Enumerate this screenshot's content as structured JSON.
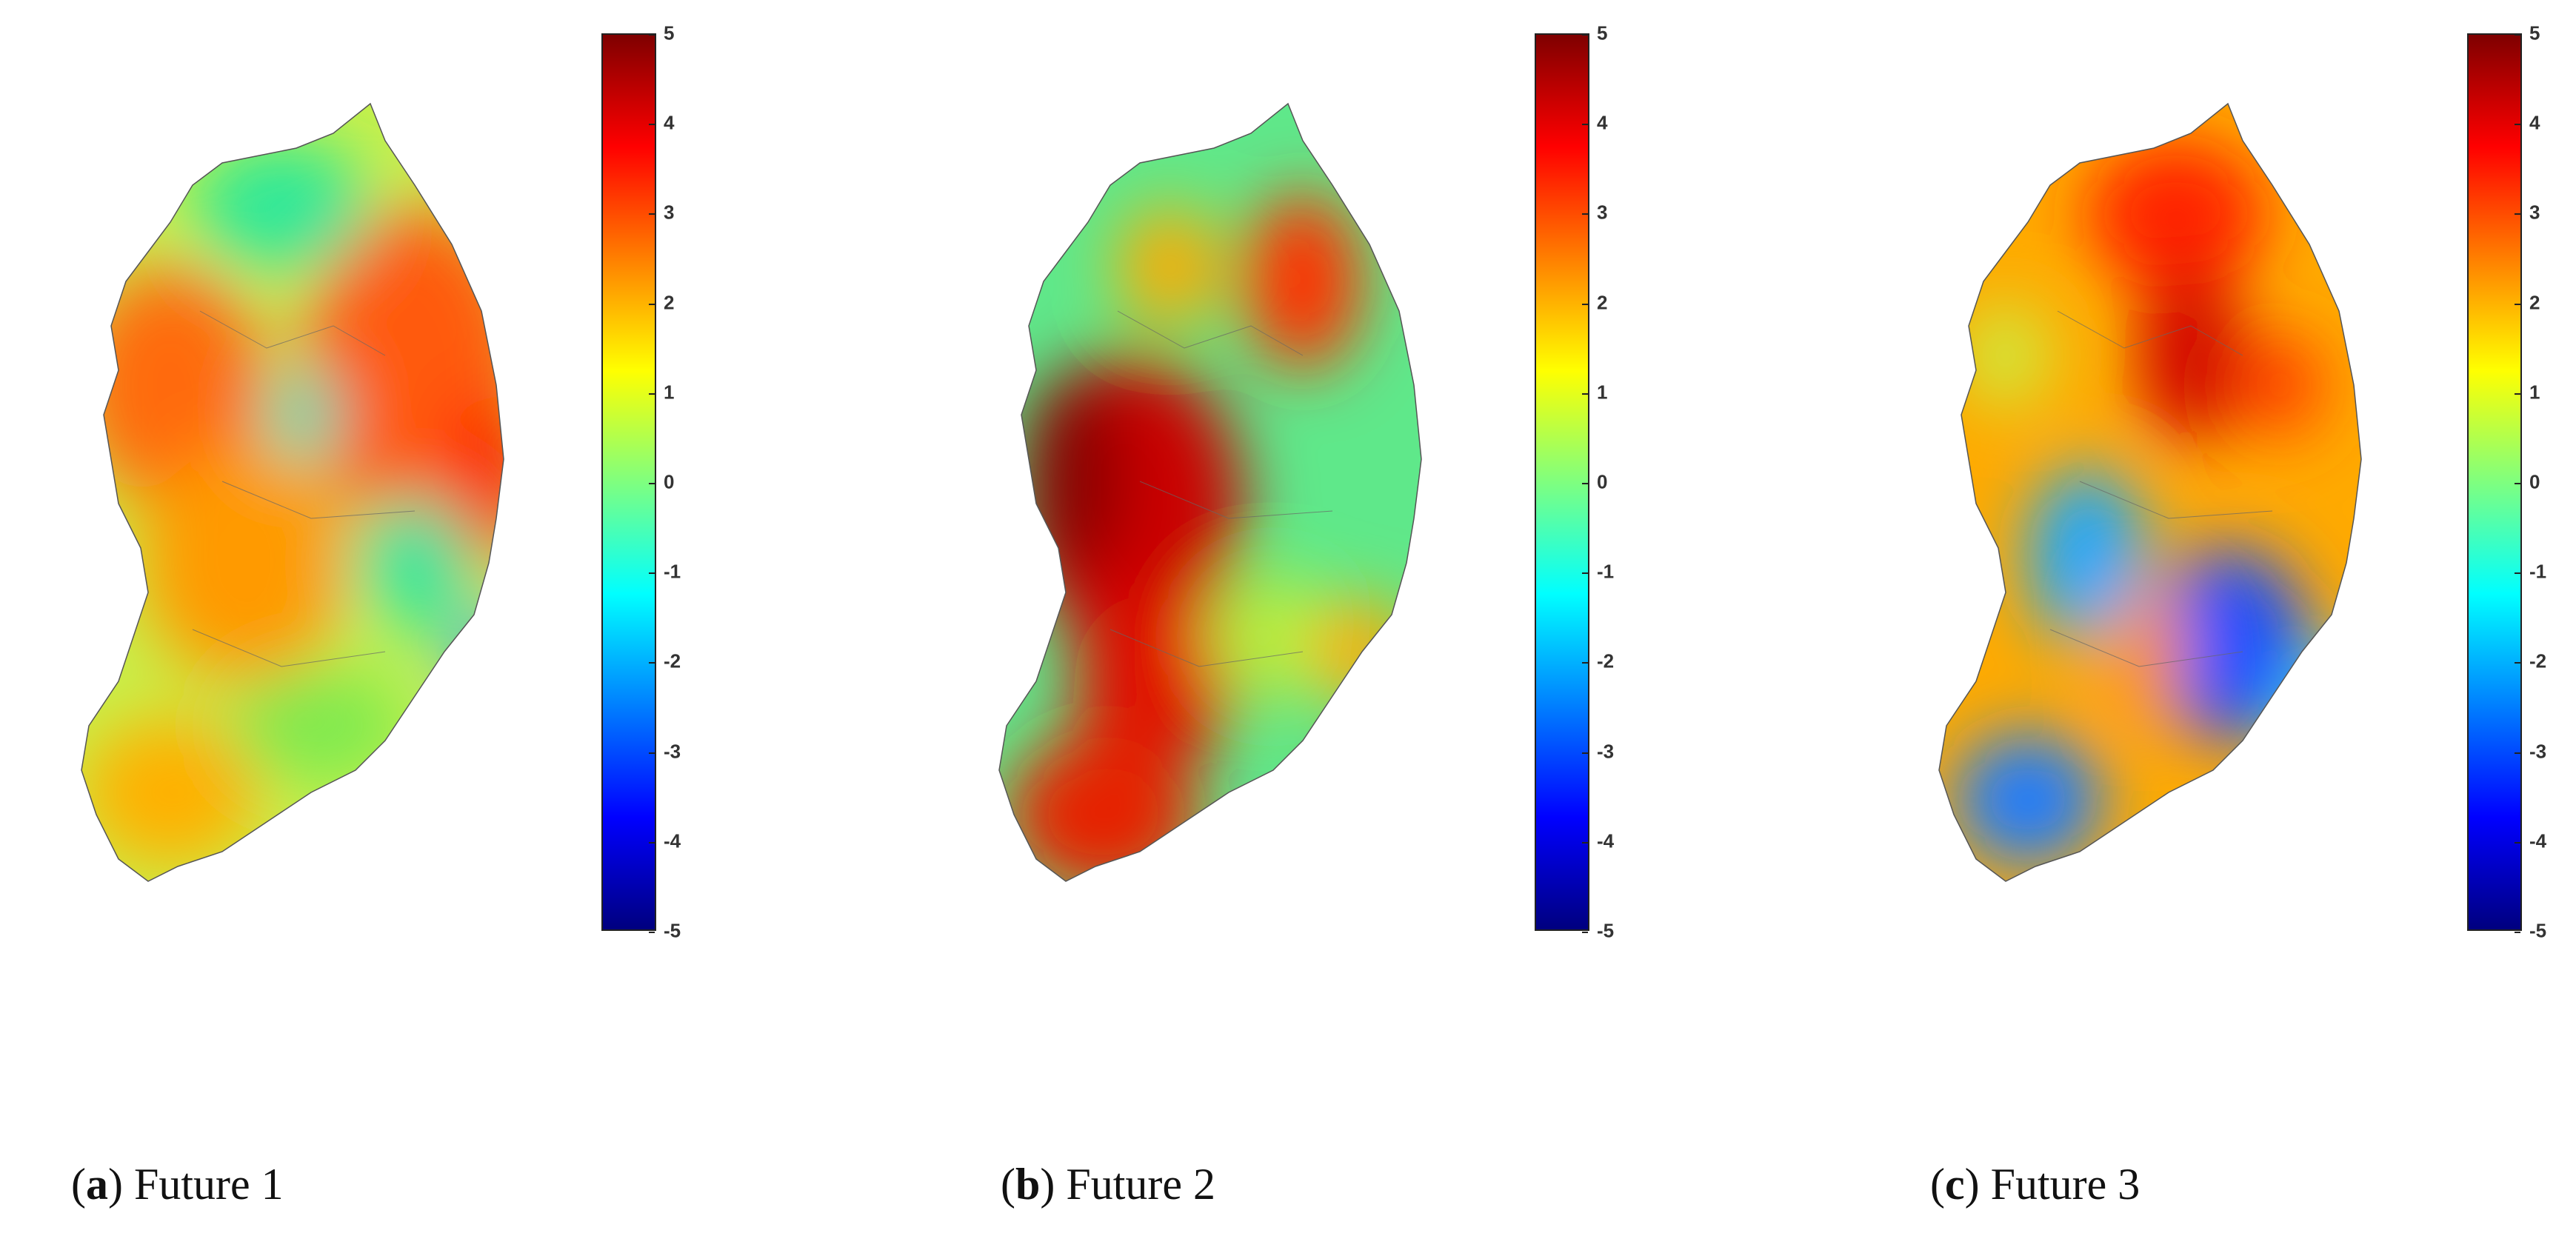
{
  "colorbar": {
    "ticks": [
      "5",
      "4",
      "3",
      "2",
      "1",
      "0",
      "-1",
      "-2",
      "-3",
      "-4",
      "-5"
    ],
    "min": -5,
    "max": 5,
    "colormap": [
      "#00007f",
      "#0000ff",
      "#007fff",
      "#00ffff",
      "#7fff7f",
      "#ffff00",
      "#ff7f00",
      "#ff0000",
      "#7f0000"
    ]
  },
  "panels": [
    {
      "letter": "a",
      "open": "(",
      "close": ") ",
      "title": "Future 1"
    },
    {
      "letter": "b",
      "open": "(",
      "close": ") ",
      "title": "Future 2"
    },
    {
      "letter": "c",
      "open": "(",
      "close": ") ",
      "title": "Future 3"
    }
  ]
}
